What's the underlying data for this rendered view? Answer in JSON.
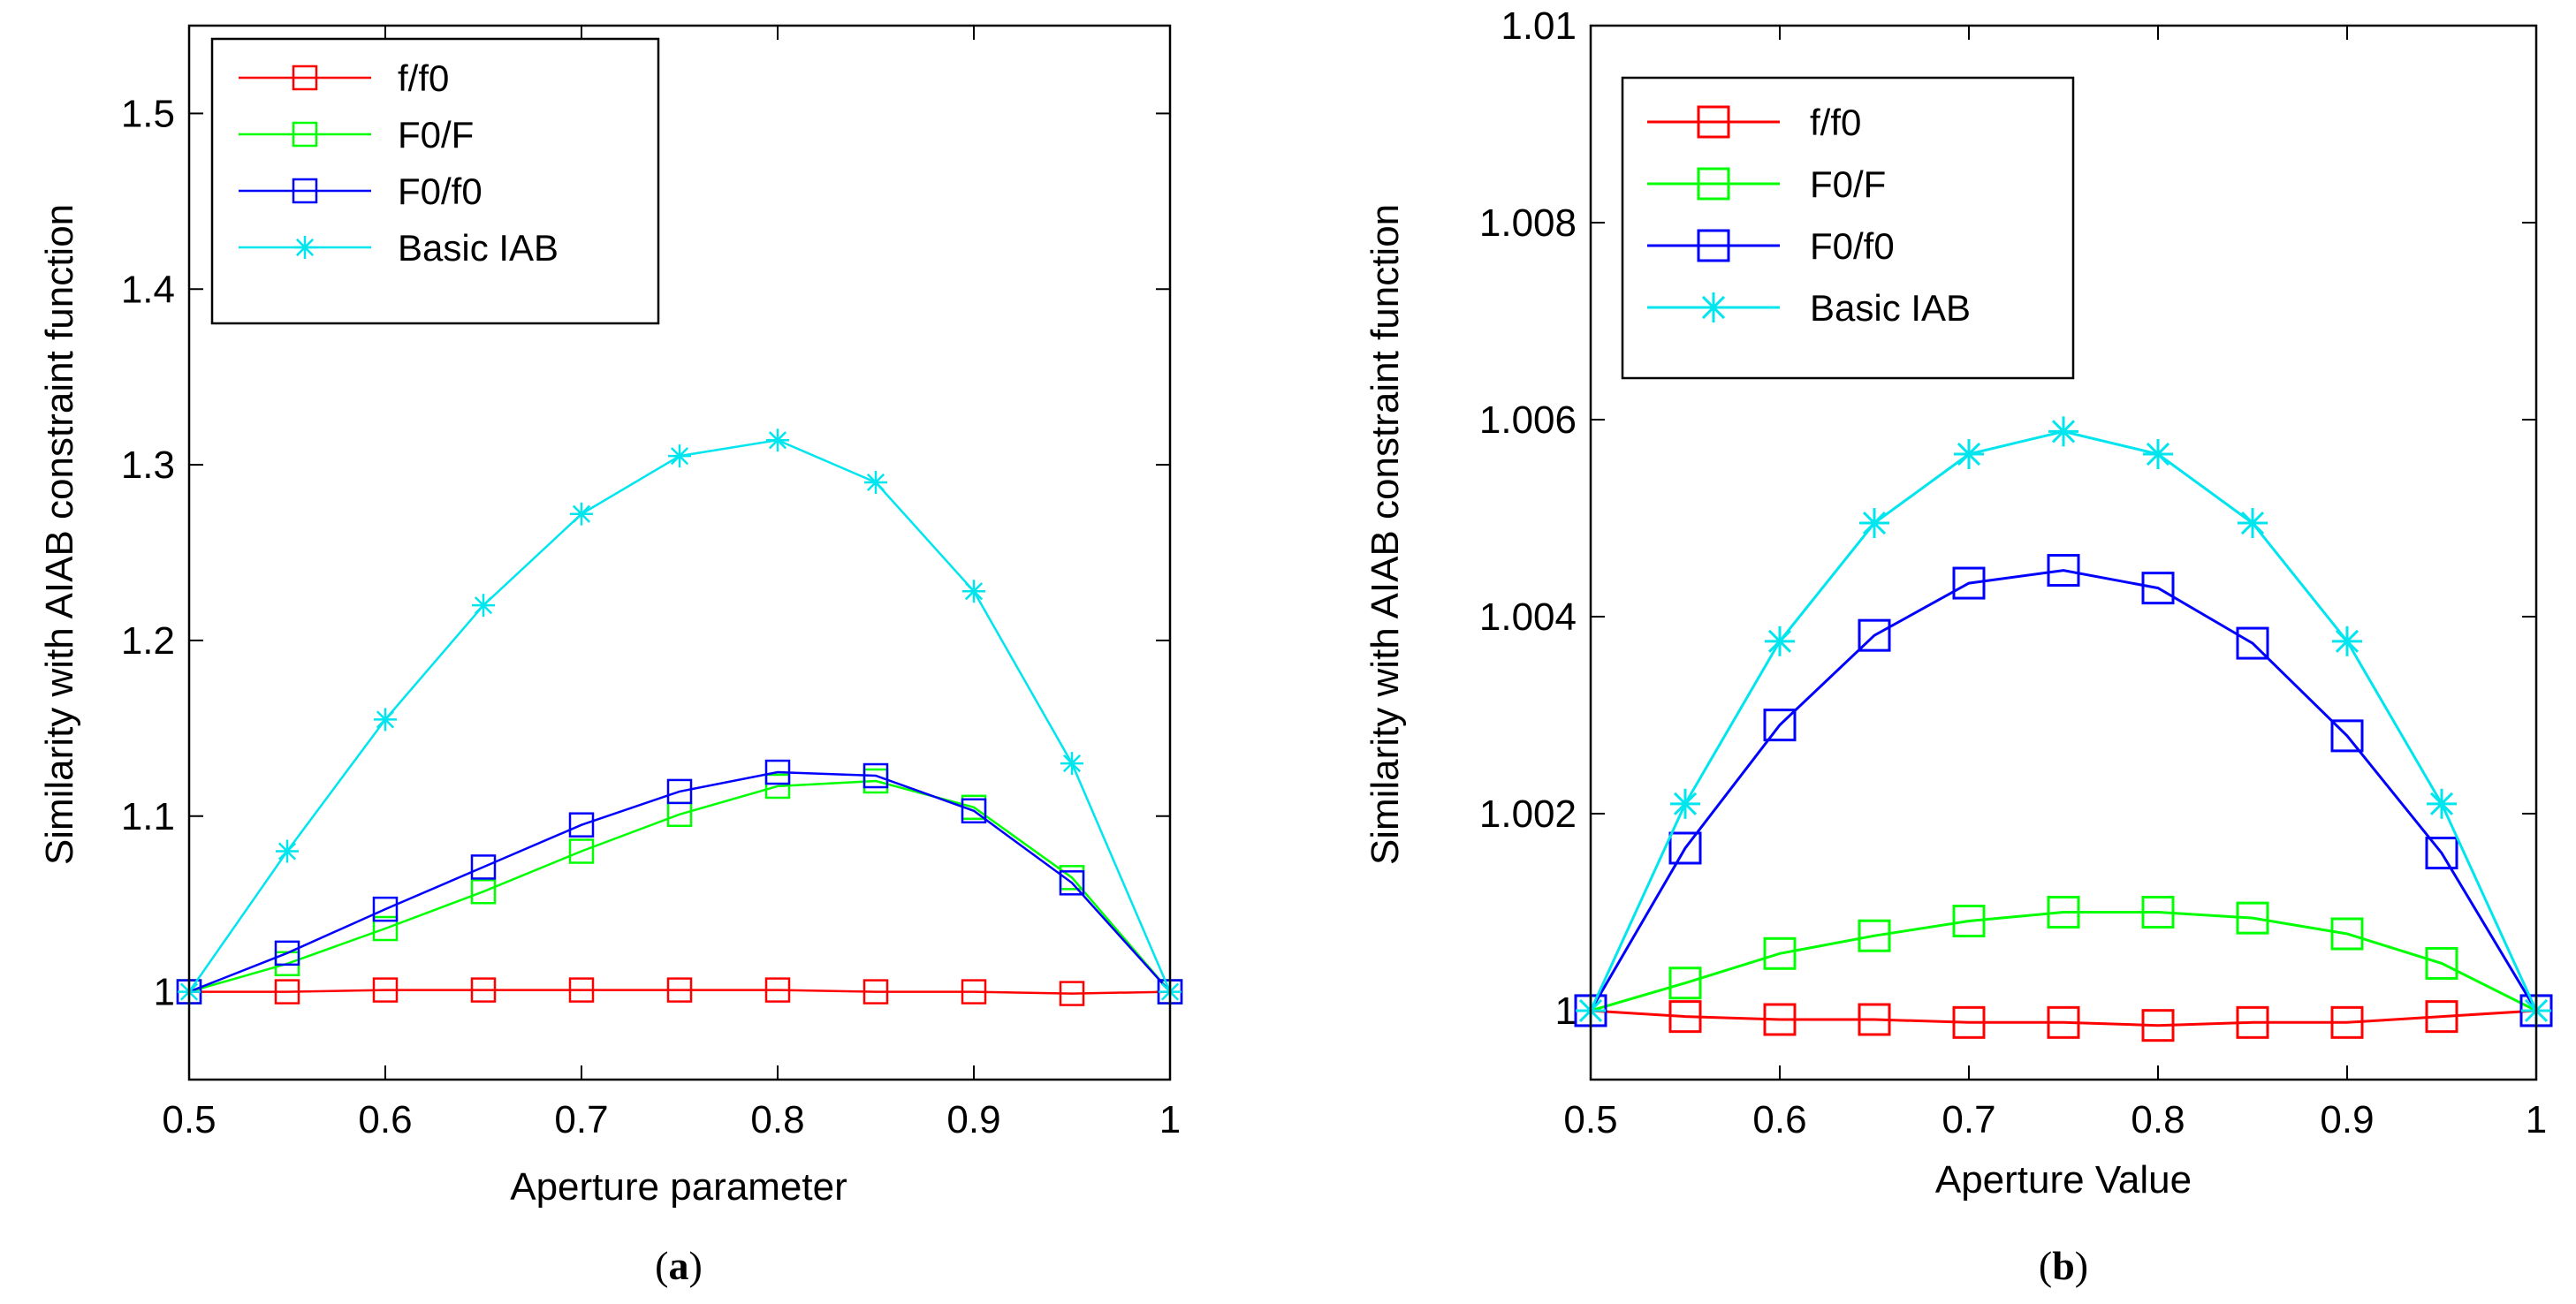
{
  "panels": [
    {
      "id": "a",
      "caption_open": "(",
      "caption_letter": "a",
      "caption_close": ")",
      "chart_data": {
        "type": "line",
        "xlabel": "Aperture parameter",
        "ylabel": "Similarity with AIAB constraint function",
        "xlim": [
          0.5,
          1.0
        ],
        "ylim": [
          0.95,
          1.55
        ],
        "xticks": [
          0.5,
          0.6,
          0.7,
          0.8,
          0.9,
          1.0
        ],
        "xtick_labels": [
          "0.5",
          "0.6",
          "0.7",
          "0.8",
          "0.9",
          "1"
        ],
        "yticks": [
          1.0,
          1.1,
          1.2,
          1.3,
          1.4,
          1.5
        ],
        "ytick_labels": [
          "1",
          "1.1",
          "1.2",
          "1.3",
          "1.4",
          "1.5"
        ],
        "grid": false,
        "legend_position": "top-left",
        "x": [
          0.5,
          0.55,
          0.6,
          0.65,
          0.7,
          0.75,
          0.8,
          0.85,
          0.9,
          0.95,
          1.0
        ],
        "series": [
          {
            "name": "f/f0",
            "color": "#ff0000",
            "marker": "square",
            "values": [
              1.0,
              1.0,
              1.001,
              1.001,
              1.001,
              1.001,
              1.001,
              1.0,
              1.0,
              0.999,
              1.0
            ]
          },
          {
            "name": "F0/F",
            "color": "#00ff00",
            "marker": "square",
            "values": [
              1.0,
              1.016,
              1.036,
              1.057,
              1.08,
              1.101,
              1.117,
              1.12,
              1.105,
              1.065,
              1.0
            ]
          },
          {
            "name": "F0/f0",
            "color": "#0000ff",
            "marker": "square",
            "values": [
              1.0,
              1.022,
              1.047,
              1.071,
              1.095,
              1.114,
              1.125,
              1.123,
              1.103,
              1.062,
              1.0
            ]
          },
          {
            "name": "Basic IAB",
            "color": "#00e5ee",
            "marker": "star",
            "values": [
              1.0,
              1.08,
              1.155,
              1.22,
              1.272,
              1.305,
              1.314,
              1.29,
              1.228,
              1.13,
              1.0
            ]
          }
        ]
      }
    },
    {
      "id": "b",
      "caption_open": "(",
      "caption_letter": "b",
      "caption_close": ")",
      "chart_data": {
        "type": "line",
        "xlabel": "Aperture Value",
        "ylabel": "Similarity with AIAB constraint function",
        "xlim": [
          0.5,
          1.0
        ],
        "ylim": [
          0.9993,
          1.01
        ],
        "xticks": [
          0.5,
          0.6,
          0.7,
          0.8,
          0.9,
          1.0
        ],
        "xtick_labels": [
          "0.5",
          "0.6",
          "0.7",
          "0.8",
          "0.9",
          "1"
        ],
        "yticks": [
          1.0,
          1.002,
          1.004,
          1.006,
          1.008,
          1.01
        ],
        "ytick_labels": [
          "1",
          "1.002",
          "1.004",
          "1.006",
          "1.008",
          "1.01"
        ],
        "grid": false,
        "legend_position": "top-left",
        "x": [
          0.5,
          0.55,
          0.6,
          0.65,
          0.7,
          0.75,
          0.8,
          0.85,
          0.9,
          0.95,
          1.0
        ],
        "series": [
          {
            "name": "f/f0",
            "color": "#ff0000",
            "marker": "square",
            "values": [
              1.0,
              0.99994,
              0.99991,
              0.99991,
              0.99988,
              0.99988,
              0.99985,
              0.99988,
              0.99988,
              0.99994,
              1.0
            ]
          },
          {
            "name": "F0/F",
            "color": "#00ff00",
            "marker": "square",
            "values": [
              1.0,
              1.00028,
              1.00058,
              1.00076,
              1.00091,
              1.001,
              1.001,
              1.00094,
              1.00078,
              1.00048,
              1.0
            ]
          },
          {
            "name": "F0/f0",
            "color": "#0000ff",
            "marker": "square",
            "values": [
              1.0,
              1.00165,
              1.0029,
              1.00381,
              1.00434,
              1.00447,
              1.00429,
              1.00373,
              1.00279,
              1.0016,
              1.0
            ]
          },
          {
            "name": "Basic IAB",
            "color": "#00e5ee",
            "marker": "star",
            "values": [
              1.0,
              1.0021,
              1.00375,
              1.00495,
              1.00565,
              1.00588,
              1.00565,
              1.00495,
              1.00375,
              1.0021,
              1.0
            ]
          }
        ]
      }
    }
  ]
}
